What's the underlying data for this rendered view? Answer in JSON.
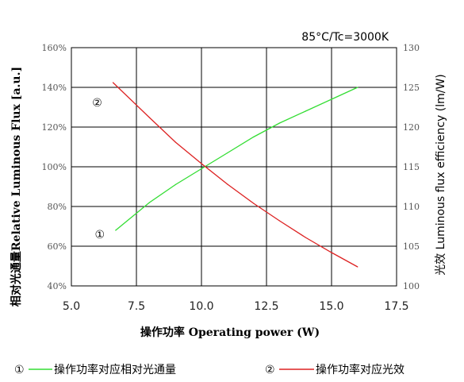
{
  "chart_data": {
    "type": "line",
    "title": "85°C/Tc=3000K",
    "x_axis": {
      "label": "操作功率 Operating power (W)",
      "range": [
        5.0,
        17.5
      ],
      "ticks": [
        "5.0",
        "7.5",
        "10.0",
        "12.5",
        "15.0",
        "17.5"
      ]
    },
    "y_left": {
      "label": "相对光通量Relative Luminous Flux [a.u.]",
      "range": [
        40,
        160
      ],
      "ticks": [
        "40%",
        "60%",
        "80%",
        "100%",
        "120%",
        "140%",
        "160%"
      ]
    },
    "y_right": {
      "label": "光效 Luminous flux efficiency (lm/W)",
      "range": [
        100,
        130
      ],
      "ticks": [
        "100",
        "105",
        "110",
        "115",
        "120",
        "125",
        "130"
      ]
    },
    "grid": true,
    "series": [
      {
        "name": "操作功率对应相对光通量",
        "marker_label": "①",
        "axis": "left",
        "color": "#33dd33",
        "x": [
          6.7,
          8,
          9,
          10,
          11,
          12,
          13,
          14,
          15,
          16
        ],
        "y": [
          68,
          82,
          91,
          99,
          107,
          115,
          122,
          128,
          134,
          140
        ]
      },
      {
        "name": "操作功率对应光效",
        "marker_label": "②",
        "axis": "right",
        "color": "#dd2222",
        "x": [
          6.6,
          8,
          9,
          10,
          11,
          12,
          13,
          14,
          15,
          16
        ],
        "y": [
          125.6,
          121.2,
          118.1,
          115.4,
          112.8,
          110.4,
          108.2,
          106.1,
          104.2,
          102.4
        ]
      }
    ],
    "legend": [
      {
        "marker": "①",
        "label": "操作功率对应相对光通量",
        "color": "#33dd33"
      },
      {
        "marker": "②",
        "label": "操作功率对应光效",
        "color": "#dd2222"
      }
    ]
  }
}
